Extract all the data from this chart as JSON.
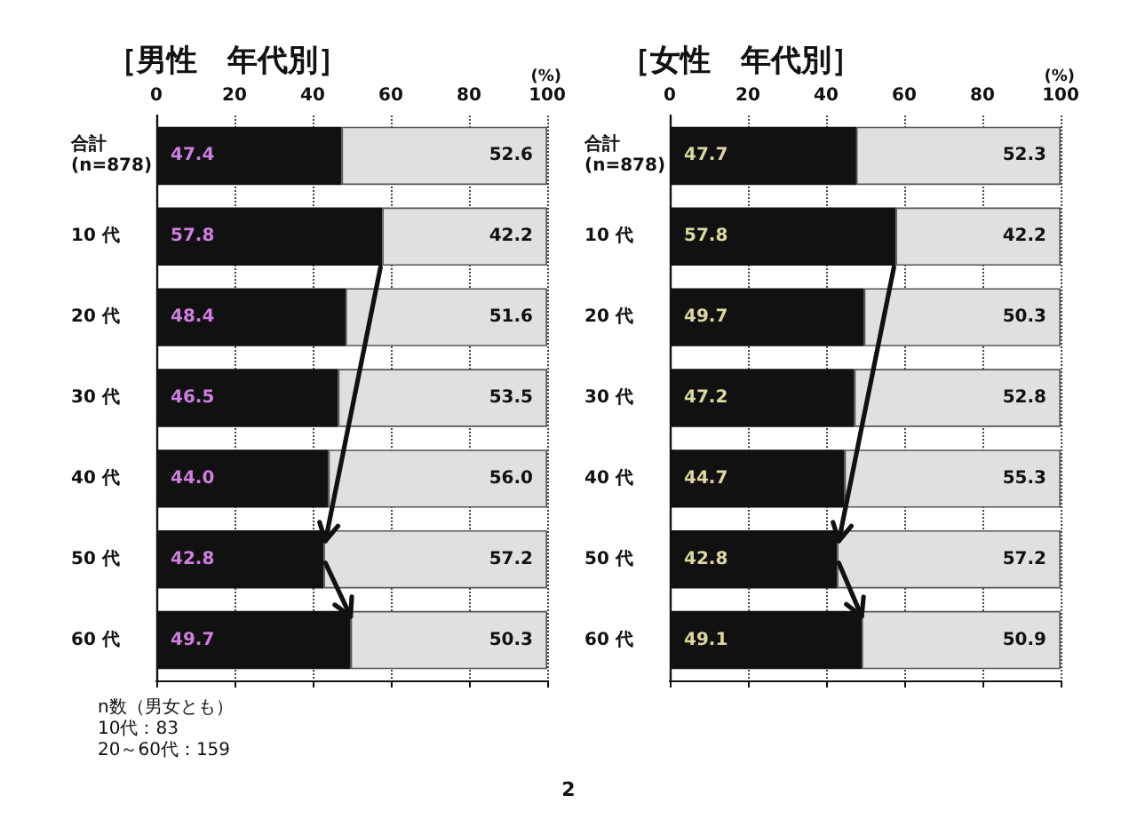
{
  "chart_data": [
    {
      "type": "bar",
      "title": "［男性　年代別］",
      "orientation": "horizontal",
      "stacked": true,
      "categories": [
        "合計\n(n=878)",
        "10 代",
        "20 代",
        "30 代",
        "40 代",
        "50 代",
        "60 代"
      ],
      "series": [
        {
          "color": "#111111",
          "values": [
            47.4,
            57.8,
            48.4,
            46.5,
            44.0,
            42.8,
            49.7
          ],
          "value_labels": [
            "47.4",
            "57.8",
            "48.4",
            "46.5",
            "44.0",
            "42.8",
            "49.7"
          ]
        },
        {
          "color": "#dfe0e2",
          "values": [
            52.6,
            42.2,
            51.6,
            53.5,
            56.0,
            57.2,
            50.3
          ],
          "value_labels": [
            "52.6",
            "42.2",
            "51.6",
            "53.5",
            "56.0",
            "57.2",
            "50.3"
          ]
        }
      ],
      "xlabel": "(%)",
      "xlim": [
        0,
        100
      ],
      "xticks": [
        0,
        20,
        40,
        60,
        80,
        100
      ],
      "grid": "x",
      "annotations": [
        "n数（男女とも）\n10代：83\n20～60代：159",
        "2"
      ]
    },
    {
      "type": "bar",
      "title": "［女性　年代別］",
      "orientation": "horizontal",
      "stacked": true,
      "categories": [
        "合計\n(n=878)",
        "10 代",
        "20 代",
        "30 代",
        "40 代",
        "50 代",
        "60 代"
      ],
      "series": [
        {
          "color": "#111111",
          "values": [
            47.7,
            57.8,
            49.7,
            47.2,
            44.7,
            42.8,
            49.1
          ],
          "value_labels": [
            "47.7",
            "57.8",
            "49.7",
            "47.2",
            "44.7",
            "42.8",
            "49.1"
          ]
        },
        {
          "color": "#dfe0e2",
          "values": [
            52.3,
            42.2,
            50.3,
            52.8,
            55.3,
            57.2,
            50.9
          ],
          "value_labels": [
            "52.3",
            "42.2",
            "50.3",
            "52.8",
            "55.3",
            "57.2",
            "50.9"
          ]
        }
      ],
      "xlabel": "(%)",
      "xlim": [
        0,
        100
      ],
      "xticks": [
        0,
        20,
        40,
        60,
        80,
        100
      ],
      "grid": "x"
    }
  ]
}
